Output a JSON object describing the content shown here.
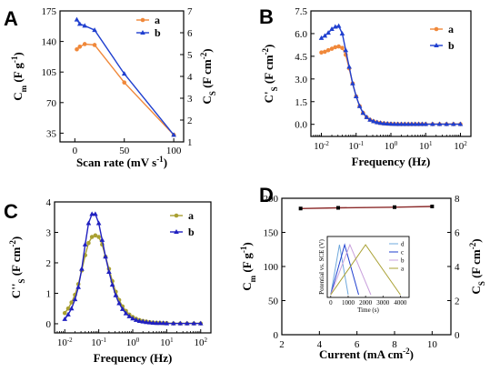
{
  "colors": {
    "a_orange": "#f0883a",
    "b_blue": "#1f3fcf",
    "a_olive": "#a9a032",
    "b_navy": "#2020c0",
    "d_dark": "#8b2a2a"
  },
  "chart_data": [
    {
      "panel": "A",
      "type": "line",
      "xlabel": "Scan rate (mV s",
      "xlabel_sup": "-1",
      "xlabel_end": ")",
      "ylabel": "C",
      "ylabel_sub": "m",
      "ylabel_units": " (F g",
      "ylabel_sup": "-1",
      "ylabel_end": ")",
      "ylabel2": "C",
      "ylabel2_sub": "S",
      "ylabel2_units": " (F cm",
      "ylabel2_sup": "-2",
      "ylabel2_end": ")",
      "xlim": [
        -15,
        110
      ],
      "ylim": [
        25,
        175
      ],
      "y2lim": [
        1,
        7
      ],
      "xticks": [
        "0",
        "50",
        "100"
      ],
      "yticks": [
        "35",
        "70",
        "105",
        "140",
        "175"
      ],
      "y2ticks": [
        "1",
        "2",
        "3",
        "4",
        "5",
        "6",
        "7"
      ],
      "series": [
        {
          "name": "a",
          "color": "#f0883a",
          "x": [
            2,
            5,
            10,
            20,
            50,
            100
          ],
          "y": [
            131,
            134,
            137,
            136,
            93,
            33
          ]
        },
        {
          "name": "b",
          "color": "#1f3fcf",
          "x": [
            2,
            5,
            10,
            20,
            50,
            100
          ],
          "y": [
            165,
            160,
            158,
            153,
            103,
            33
          ]
        }
      ],
      "legend": [
        "a",
        "b"
      ],
      "legend_position": "top-right"
    },
    {
      "panel": "B",
      "type": "line",
      "xlabel": "Frequency (Hz)",
      "ylabel": "C",
      "ylabel_sub": "S",
      "ylabel_prime": "'",
      "ylabel_units": " (F cm",
      "ylabel_sup": "-2",
      "ylabel_end": ")",
      "xscale": "log",
      "xlim": [
        0.005,
        200
      ],
      "ylim": [
        -0.8,
        7.5
      ],
      "xticks": [
        {
          "v": 0.01,
          "e": "-2"
        },
        {
          "v": 0.1,
          "e": "-1"
        },
        {
          "v": 1,
          "e": "0"
        },
        {
          "v": 10,
          "e": "1"
        },
        {
          "v": 100,
          "e": "2"
        }
      ],
      "yticks": [
        "0.0",
        "1.5",
        "3.0",
        "4.5",
        "6.0",
        "7.5"
      ],
      "series": [
        {
          "name": "a",
          "color": "#f0883a",
          "x": [
            0.01,
            0.0126,
            0.0158,
            0.02,
            0.0251,
            0.0316,
            0.0398,
            0.0501,
            0.0631,
            0.0794,
            0.1,
            0.126,
            0.158,
            0.2,
            0.251,
            0.316,
            0.398,
            0.501,
            0.631,
            0.794,
            1,
            1.26,
            1.58,
            2,
            2.51,
            3.16,
            3.98,
            5.01,
            6.31,
            7.94,
            10,
            15.8,
            25.1,
            39.8,
            63.1,
            100
          ],
          "y": [
            4.75,
            4.8,
            4.9,
            5.0,
            5.1,
            5.15,
            5.05,
            4.6,
            3.7,
            2.7,
            1.85,
            1.2,
            0.75,
            0.47,
            0.3,
            0.2,
            0.13,
            0.09,
            0.06,
            0.04,
            0.03,
            0.02,
            0.015,
            0.01,
            0.01,
            0.01,
            0.01,
            0.01,
            0.01,
            0.01,
            0.01,
            0.01,
            0.01,
            0.01,
            0.01,
            0.01
          ]
        },
        {
          "name": "b",
          "color": "#1f3fcf",
          "x": [
            0.01,
            0.0126,
            0.0158,
            0.02,
            0.0251,
            0.0316,
            0.0398,
            0.0501,
            0.0631,
            0.0794,
            0.1,
            0.126,
            0.158,
            0.2,
            0.251,
            0.316,
            0.398,
            0.501,
            0.631,
            0.794,
            1,
            1.26,
            1.58,
            2,
            2.51,
            3.16,
            3.98,
            5.01,
            6.31,
            7.94,
            10,
            15.8,
            25.1,
            39.8,
            63.1,
            100
          ],
          "y": [
            5.7,
            5.85,
            6.05,
            6.3,
            6.45,
            6.5,
            6.0,
            4.9,
            3.8,
            2.7,
            1.85,
            1.2,
            0.75,
            0.47,
            0.3,
            0.2,
            0.13,
            0.09,
            0.06,
            0.04,
            0.03,
            0.02,
            0.015,
            0.01,
            0.01,
            0.01,
            0.01,
            0.01,
            0.01,
            0.01,
            0.01,
            0.01,
            0.01,
            0.01,
            0.01,
            0.01
          ]
        }
      ],
      "legend": [
        "a",
        "b"
      ],
      "legend_position": "top-right"
    },
    {
      "panel": "C",
      "type": "line",
      "xlabel": "Frequency (Hz)",
      "ylabel": "C",
      "ylabel_sub": "S",
      "ylabel_prime": "''",
      "ylabel_units": " (F cm",
      "ylabel_sup": "-2",
      "ylabel_end": ")",
      "xscale": "log",
      "xlim": [
        0.005,
        200
      ],
      "ylim": [
        -0.3,
        4
      ],
      "xticks": [
        {
          "v": 0.01,
          "e": "-2"
        },
        {
          "v": 0.1,
          "e": "-1"
        },
        {
          "v": 1,
          "e": "0"
        },
        {
          "v": 10,
          "e": "1"
        },
        {
          "v": 100,
          "e": "2"
        }
      ],
      "yticks": [
        "0",
        "1",
        "2",
        "3",
        "4"
      ],
      "series": [
        {
          "name": "a",
          "color": "#a9a032",
          "x": [
            0.01,
            0.0126,
            0.0158,
            0.02,
            0.0251,
            0.0316,
            0.0398,
            0.0501,
            0.0631,
            0.0794,
            0.1,
            0.126,
            0.158,
            0.2,
            0.251,
            0.316,
            0.398,
            0.501,
            0.631,
            0.794,
            1,
            1.26,
            1.58,
            2,
            2.51,
            3.16,
            3.98,
            5.01,
            6.31,
            7.94,
            10,
            15.8,
            25.1,
            39.8,
            63.1,
            100
          ],
          "y": [
            0.35,
            0.5,
            0.7,
            0.95,
            1.3,
            1.75,
            2.25,
            2.65,
            2.85,
            2.9,
            2.85,
            2.6,
            2.2,
            1.8,
            1.4,
            1.05,
            0.78,
            0.57,
            0.42,
            0.3,
            0.22,
            0.16,
            0.12,
            0.09,
            0.07,
            0.05,
            0.04,
            0.03,
            0.03,
            0.02,
            0.02,
            0.01,
            0.01,
            0.01,
            0.01,
            0.01
          ]
        },
        {
          "name": "b",
          "color": "#2020c0",
          "x": [
            0.01,
            0.0126,
            0.0158,
            0.02,
            0.0251,
            0.0316,
            0.0398,
            0.0501,
            0.0631,
            0.0794,
            0.1,
            0.126,
            0.158,
            0.2,
            0.251,
            0.316,
            0.398,
            0.501,
            0.631,
            0.794,
            1,
            1.26,
            1.58,
            2,
            2.51,
            3.16,
            3.98,
            5.01,
            6.31,
            7.94,
            10,
            15.8,
            25.1,
            39.8,
            63.1,
            100
          ],
          "y": [
            0.15,
            0.3,
            0.5,
            0.8,
            1.2,
            1.8,
            2.6,
            3.3,
            3.6,
            3.6,
            3.3,
            2.75,
            2.2,
            1.7,
            1.28,
            0.93,
            0.67,
            0.48,
            0.34,
            0.24,
            0.17,
            0.12,
            0.09,
            0.07,
            0.05,
            0.04,
            0.03,
            0.02,
            0.02,
            0.02,
            0.01,
            0.01,
            0.01,
            0.01,
            0.01,
            0.01
          ]
        }
      ],
      "legend": [
        "a",
        "b"
      ],
      "legend_position": "top-right"
    },
    {
      "panel": "D",
      "type": "line",
      "xlabel": "Current (mA cm",
      "xlabel_sup": "-2",
      "xlabel_end": ")",
      "ylabel": "C",
      "ylabel_sub": "m",
      "ylabel_units": " (F g",
      "ylabel_sup": "-1",
      "ylabel_end": ")",
      "ylabel2": "C",
      "ylabel2_sub": "S",
      "ylabel2_units": " (F cm",
      "ylabel2_sup": "-2",
      "ylabel2_end": ")",
      "xlim": [
        2,
        11
      ],
      "ylim": [
        0,
        200
      ],
      "y2lim": [
        0,
        8
      ],
      "xticks": [
        "2",
        "4",
        "6",
        "8",
        "10"
      ],
      "yticks": [
        "0",
        "50",
        "100",
        "150",
        "200"
      ],
      "y2ticks": [
        "0",
        "2",
        "4",
        "6",
        "8"
      ],
      "series": [
        {
          "name": "",
          "color": "#8b2a2a",
          "x": [
            3,
            5,
            8,
            10
          ],
          "y": [
            185,
            186,
            187,
            188
          ]
        }
      ],
      "inset": {
        "type": "line",
        "xlabel": "Time (s)",
        "ylabel": "Potential vs. SCE (V)",
        "xlim": [
          -200,
          4500
        ],
        "ylim": [
          -0.05,
          1.05
        ],
        "xticks": [
          "0",
          "1000",
          "2000",
          "3000",
          "4000"
        ],
        "legend": [
          "d",
          "c",
          "b",
          "a"
        ],
        "legend_position": "top-right",
        "series": [
          {
            "name": "d",
            "color": "#6fa8dc",
            "x": [
              0,
              500,
              1000
            ],
            "y": [
              0,
              0.9,
              0
            ]
          },
          {
            "name": "c",
            "color": "#1f3fcf",
            "x": [
              0,
              800,
              1600
            ],
            "y": [
              0,
              0.9,
              0
            ]
          },
          {
            "name": "b",
            "color": "#c9a0dc",
            "x": [
              0,
              1100,
              2300
            ],
            "y": [
              0,
              0.9,
              0
            ]
          },
          {
            "name": "a",
            "color": "#a9a032",
            "x": [
              0,
              2000,
              4000
            ],
            "y": [
              0,
              0.9,
              0
            ]
          }
        ]
      }
    }
  ]
}
